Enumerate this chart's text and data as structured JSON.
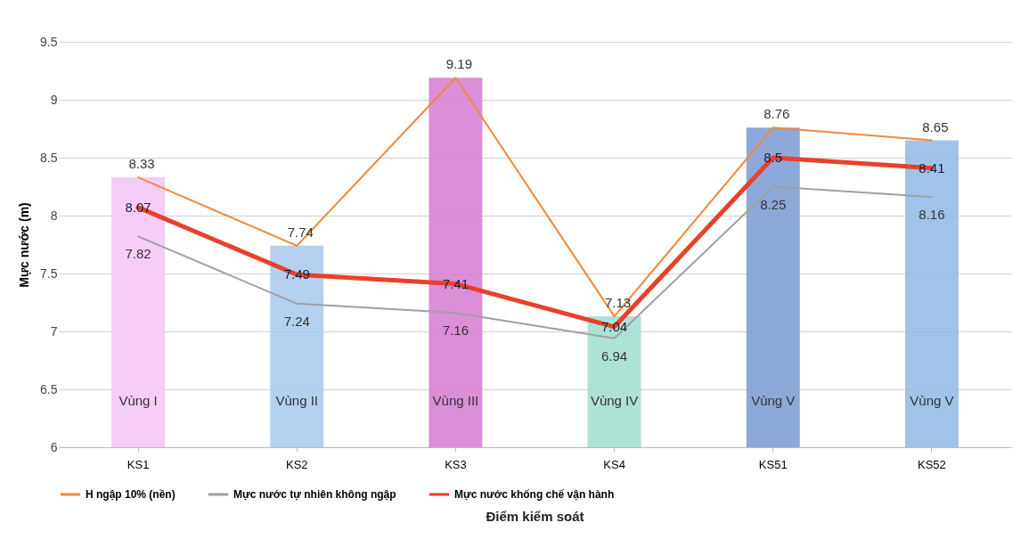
{
  "chart_data": {
    "type": "bar",
    "xlabel": "Điểm kiểm soát",
    "ylabel": "Mực nước (m)",
    "categories": [
      "KS1",
      "KS2",
      "KS3",
      "KS4",
      "KS51",
      "KS52"
    ],
    "series": [
      {
        "colors": [
          "#f5c8f5",
          "#aecbee",
          "#d882d3",
          "#a3e0d2",
          "#839ed6",
          "#97bde6"
        ],
        "values": [
          8.33,
          7.74,
          9.19,
          7.13,
          8.76,
          8.65
        ]
      },
      {
        "type": "line",
        "name": "H ngập 10% (nền)",
        "color": "#f0883a",
        "values": [
          8.33,
          7.74,
          9.19,
          7.13,
          8.76,
          8.65
        ],
        "value_labels": [
          "8.33",
          "7.74",
          "9.19",
          "7.13",
          "8.76",
          "8.65"
        ]
      },
      {
        "type": "line",
        "name": "Mực nước tự nhiên không ngập",
        "color": "#a0a0a0",
        "values": [
          7.82,
          7.24,
          7.16,
          6.94,
          8.25,
          8.16
        ],
        "value_labels": [
          "7.82",
          "7.24",
          "7.16",
          "6.94",
          "8.25",
          "8.16"
        ]
      },
      {
        "type": "line",
        "name": "Mực nước khống chế vận hành",
        "color": "#e8412b",
        "values": [
          8.07,
          7.49,
          7.41,
          7.04,
          8.5,
          8.41
        ],
        "value_labels": [
          "8.07",
          "7.49",
          "7.41",
          "7.04",
          "8.5",
          "8.41"
        ]
      }
    ],
    "annotations": [
      "Vùng I",
      "Vùng II",
      "Vùng III",
      "Vùng IV",
      "Vùng V",
      "Vùng V"
    ],
    "ylim": [
      6,
      9.5
    ],
    "yticks": [
      6,
      6.5,
      7,
      7.5,
      8,
      8.5,
      9,
      9.5
    ],
    "grid": "y",
    "legend": "bottom"
  }
}
